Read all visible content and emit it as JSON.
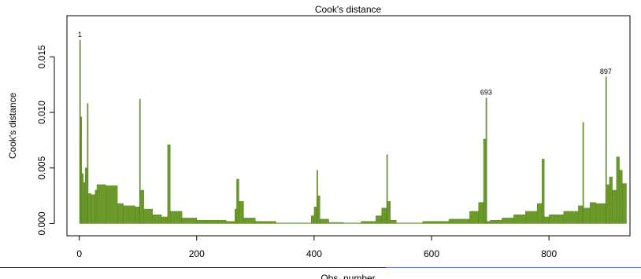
{
  "chart_data": {
    "type": "histogram",
    "title": "Cook's distance",
    "xlabel": "Obs. number",
    "ylabel": "Cook's distance",
    "bins": [
      0.5,
      1.5,
      2.5,
      3.5,
      7,
      10,
      13.5,
      14.5,
      20,
      27,
      30,
      45,
      65,
      75,
      95,
      102.5,
      103.5,
      110,
      125,
      140,
      150.5,
      155,
      175,
      200,
      250,
      265,
      268,
      272,
      280,
      300,
      335,
      395,
      400,
      404.5,
      405.5,
      410,
      425,
      450,
      480,
      505,
      515,
      523.5,
      524.5,
      530,
      540,
      585,
      630,
      665,
      680,
      688.5,
      692.5,
      693.5,
      700,
      720,
      740,
      760,
      780,
      788,
      792,
      800,
      825,
      850,
      857.5,
      858.5,
      870,
      880,
      896.5,
      897.5,
      903,
      908,
      915,
      920,
      925,
      932
    ],
    "values": [
      0.0165,
      0.0078,
      0.0096,
      0.0045,
      0.0037,
      0.005,
      0.0108,
      0.0027,
      0.0026,
      0.003,
      0.0035,
      0.0034,
      0.0018,
      0.0016,
      0.0015,
      0.0112,
      0.003,
      0.0013,
      0.0008,
      0.0006,
      0.0071,
      0.0011,
      0.0005,
      0.0003,
      0.0002,
      0.0013,
      0.004,
      0.002,
      0.0005,
      0.0002,
      5e-05,
      0.0007,
      0.0015,
      0.0048,
      0.0025,
      0.0004,
      0.0001,
      5e-05,
      0.0002,
      0.0007,
      0.0014,
      0.0062,
      0.002,
      0.0003,
      5e-05,
      0.0002,
      0.0004,
      0.0011,
      0.0019,
      0.0076,
      0.0113,
      0.0002,
      0.0003,
      0.0005,
      0.0008,
      0.0011,
      0.0018,
      0.0058,
      0.0006,
      0.0008,
      0.0011,
      0.0016,
      0.0091,
      0.0014,
      0.0019,
      0.0018,
      0.0132,
      0.0035,
      0.0042,
      0.003,
      0.006,
      0.0048,
      0.0036
    ],
    "color": "#6b9a2a",
    "annotations": [
      {
        "text": "1",
        "x": 1
      },
      {
        "text": "693",
        "x": 693
      },
      {
        "text": "897",
        "x": 897
      }
    ],
    "xlim": [
      -21,
      938
    ],
    "xticks": [
      0,
      200,
      400,
      600,
      800
    ],
    "ylim": [
      -0.0011,
      0.0187
    ],
    "yticks": [
      {
        "value": 0,
        "label": "0.000"
      },
      {
        "value": 0.005,
        "label": "0.005"
      },
      {
        "value": 0.01,
        "label": "0.010"
      },
      {
        "value": 0.015,
        "label": "0.015"
      }
    ]
  }
}
